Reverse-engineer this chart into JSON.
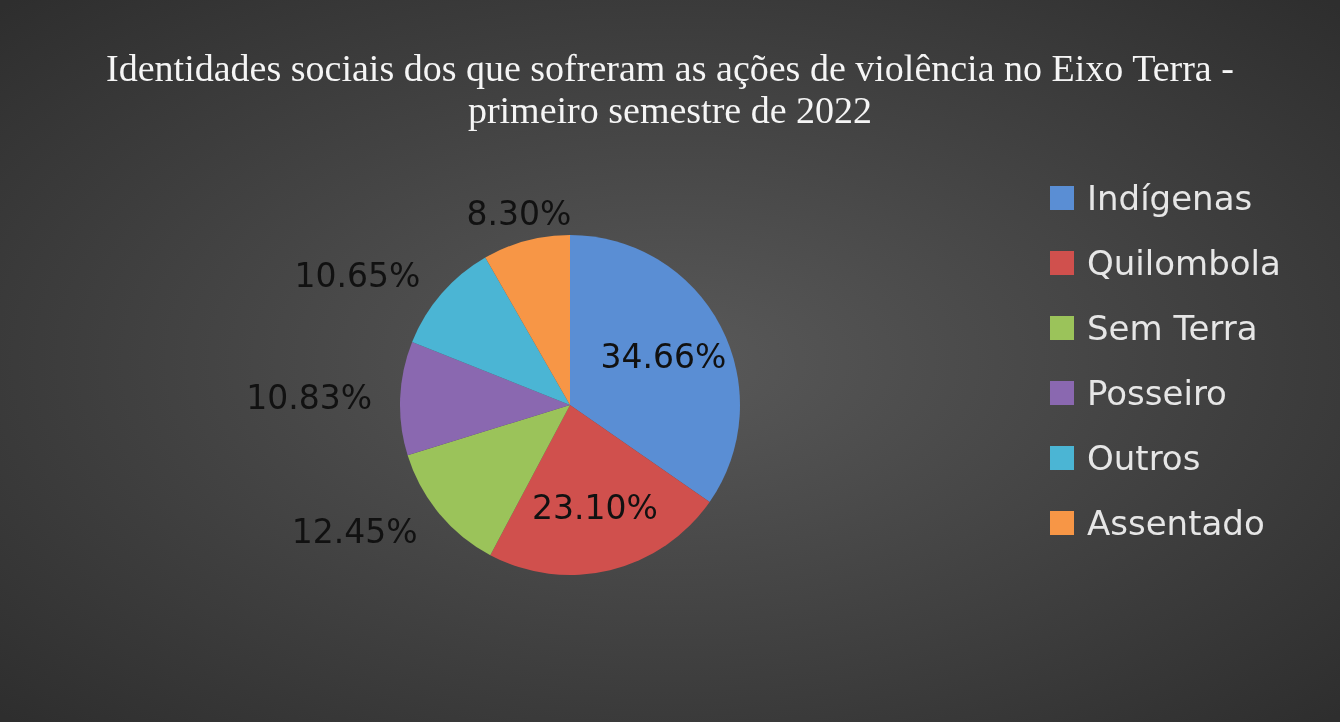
{
  "chart_data": {
    "type": "pie",
    "title": "Identidades sociais dos que sofreram as ações de violência no Eixo Terra - primeiro semestre de 2022",
    "categories": [
      "Indígenas",
      "Quilombola",
      "Sem Terra",
      "Posseiro",
      "Outros",
      "Assentado"
    ],
    "values": [
      34.66,
      23.1,
      12.45,
      10.83,
      10.65,
      8.3
    ],
    "value_labels": [
      "34.66%",
      "23.10%",
      "12.45%",
      "10.83%",
      "10.65%",
      "8.30%"
    ],
    "colors": [
      "#5a8ed4",
      "#d0504d",
      "#9bc35a",
      "#8a68b0",
      "#4bb5d4",
      "#f79646"
    ],
    "legend": "right"
  }
}
